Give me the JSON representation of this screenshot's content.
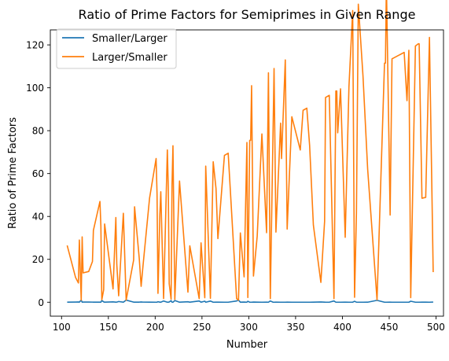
{
  "chart_data": {
    "type": "line",
    "title": "Ratio of Prime Factors for Semiprimes in Given Range",
    "xlabel": "Number",
    "ylabel": "Ratio of Prime Factors",
    "xlim": [
      88,
      508
    ],
    "ylim": [
      -6.5,
      127
    ],
    "xticks": [
      100,
      150,
      200,
      250,
      300,
      350,
      400,
      450,
      500
    ],
    "yticks": [
      0,
      20,
      40,
      60,
      80,
      100,
      120
    ],
    "grid": false,
    "legend_position": "top-left",
    "series": [
      {
        "name": "Smaller/Larger",
        "color": "#1f77b4",
        "x": [
          106,
          115,
          118,
          119,
          121,
          122,
          123,
          129,
          133,
          134,
          141,
          142,
          143,
          145,
          146,
          155,
          158,
          159,
          161,
          166,
          169,
          177,
          178,
          183,
          185,
          187,
          194,
          201,
          202,
          203,
          205,
          206,
          209,
          213,
          214,
          215,
          217,
          218,
          219,
          221,
          226,
          235,
          237,
          247,
          249,
          253,
          254,
          259,
          262,
          265,
          267,
          274,
          278,
          287,
          289,
          291,
          295,
          298,
          299,
          301,
          302,
          303,
          305,
          309,
          314,
          319,
          321,
          323,
          326,
          327,
          329,
          334,
          335,
          339,
          341,
          346,
          355,
          358,
          362,
          365,
          369,
          377,
          381,
          382,
          386,
          391,
          393,
          394,
          395,
          398,
          403,
          407,
          411,
          413,
          415,
          417,
          422,
          427,
          437,
          445,
          446,
          447,
          451,
          453,
          466,
          469,
          471,
          473,
          478,
          481,
          482,
          485,
          489,
          493,
          497
        ],
        "y": [
          0.0377,
          0.087,
          0.1111,
          0.0345,
          1.0,
          0.0328,
          0.0732,
          0.0698,
          0.0526,
          0.0299,
          0.0213,
          0.0282,
          0.8462,
          0.1724,
          0.0274,
          0.1613,
          0.0253,
          0.0566,
          0.3304,
          0.0241,
          1.0,
          0.0508,
          0.0225,
          0.0492,
          0.1351,
          0.0579,
          0.0206,
          0.0149,
          0.0198,
          0.2414,
          0.0244,
          0.0194,
          0.5789,
          0.0141,
          0.0187,
          0.1163,
          0.7059,
          0.0183,
          0.0137,
          0.7692,
          0.0177,
          0.2128,
          0.038,
          0.5882,
          0.0361,
          0.4783,
          0.0157,
          0.5405,
          0.0153,
          0.0189,
          0.0337,
          0.0146,
          0.0145,
          0.593,
          1.0,
          0.0309,
          0.0845,
          0.0135,
          0.4483,
          0.0133,
          0.0132,
          0.0099,
          0.082,
          0.0324,
          0.0128,
          0.0308,
          0.0093,
          0.5882,
          0.0123,
          0.0092,
          0.0306,
          0.012,
          0.0149,
          0.0089,
          0.0293,
          0.0116,
          0.014,
          0.0112,
          0.011,
          0.0137,
          0.0278,
          0.1081,
          0.0265,
          0.0105,
          0.0104,
          0.5882,
          0.0102,
          0.0101,
          0.0127,
          0.0101,
          0.033,
          0.01,
          0.0074,
          0.4355,
          0.0241,
          0.0072,
          0.0095,
          0.0161,
          0.8739,
          0.009,
          0.009,
          0.0067,
          0.0246,
          0.0088,
          0.0086,
          0.0106,
          0.0085,
          0.4624,
          0.0084,
          0.0083,
          0.0083,
          0.0206,
          0.0204,
          0.0082,
          0.0712
        ]
      },
      {
        "name": "Larger/Smaller",
        "color": "#ff7f0e",
        "x": [
          106,
          115,
          118,
          119,
          121,
          122,
          123,
          129,
          133,
          134,
          141,
          142,
          143,
          145,
          146,
          155,
          158,
          159,
          161,
          166,
          169,
          177,
          178,
          183,
          185,
          187,
          194,
          201,
          202,
          203,
          205,
          206,
          209,
          213,
          214,
          215,
          217,
          218,
          219,
          221,
          226,
          235,
          237,
          247,
          249,
          253,
          254,
          259,
          262,
          265,
          267,
          274,
          278,
          287,
          289,
          291,
          295,
          298,
          299,
          301,
          302,
          303,
          305,
          309,
          314,
          319,
          321,
          323,
          326,
          327,
          329,
          334,
          335,
          339,
          341,
          346,
          355,
          358,
          362,
          365,
          369,
          377,
          381,
          382,
          386,
          391,
          393,
          394,
          395,
          398,
          403,
          407,
          411,
          413,
          415,
          417,
          422,
          427,
          437,
          445,
          446,
          447,
          451,
          453,
          466,
          469,
          471,
          473,
          478,
          481,
          482,
          485,
          489,
          493,
          497
        ],
        "y": [
          26.5,
          11.5,
          9.0,
          29.0,
          1.0,
          30.5,
          13.67,
          14.33,
          19.0,
          33.5,
          47.0,
          35.5,
          1.18,
          5.8,
          36.5,
          6.2,
          39.5,
          17.67,
          3.03,
          41.5,
          1.0,
          19.67,
          44.5,
          20.33,
          7.4,
          17.0,
          48.5,
          67.0,
          50.5,
          4.14,
          41.0,
          51.5,
          1.73,
          71.0,
          53.5,
          8.6,
          1.42,
          54.5,
          73.0,
          1.3,
          56.5,
          4.7,
          26.33,
          1.7,
          27.67,
          2.09,
          63.5,
          1.85,
          65.5,
          53.0,
          29.67,
          68.5,
          69.5,
          1.69,
          1.0,
          32.33,
          11.8,
          74.5,
          2.23,
          75.5,
          75.5,
          101.0,
          12.2,
          30.85,
          78.5,
          32.44,
          107.0,
          1.7,
          81.5,
          109.0,
          32.7,
          83.5,
          67.0,
          113.0,
          34.13,
          86.5,
          71.0,
          89.5,
          90.5,
          73.0,
          36.0,
          9.25,
          37.76,
          95.5,
          96.5,
          1.7,
          98.5,
          98.5,
          79.0,
          99.5,
          30.27,
          100.5,
          136.0,
          2.3,
          41.5,
          139.0,
          105.5,
          62.0,
          1.14,
          111.5,
          111.5,
          149.0,
          40.67,
          113.5,
          116.5,
          94.0,
          117.5,
          2.16,
          119.5,
          120.5,
          120.5,
          48.5,
          48.9,
          123.5,
          14.05
        ]
      }
    ]
  }
}
